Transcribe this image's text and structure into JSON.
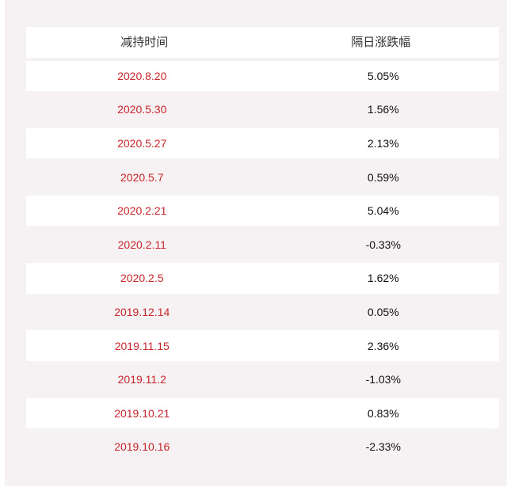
{
  "table": {
    "headers": {
      "date": "减持时间",
      "change": "隔日涨跌幅"
    },
    "rows": [
      {
        "date": "2020.8.20",
        "change": "5.05%"
      },
      {
        "date": "2020.5.30",
        "change": "1.56%"
      },
      {
        "date": "2020.5.27",
        "change": "2.13%"
      },
      {
        "date": "2020.5.7",
        "change": "0.59%"
      },
      {
        "date": "2020.2.21",
        "change": "5.04%"
      },
      {
        "date": "2020.2.11",
        "change": "-0.33%"
      },
      {
        "date": "2020.2.5",
        "change": "1.62%"
      },
      {
        "date": "2019.12.14",
        "change": "0.05%"
      },
      {
        "date": "2019.11.15",
        "change": "2.36%"
      },
      {
        "date": "2019.11.2",
        "change": "-1.03%"
      },
      {
        "date": "2019.10.21",
        "change": "0.83%"
      },
      {
        "date": "2019.10.16",
        "change": "-2.33%"
      }
    ],
    "colors": {
      "date_text": "#c8252c",
      "value_text": "#111111",
      "stripe": "#f6f1f2",
      "row": "#ffffff"
    }
  }
}
